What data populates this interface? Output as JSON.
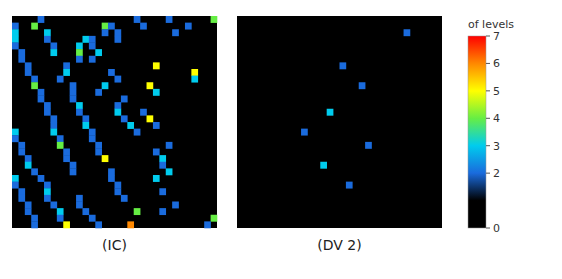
{
  "chart_data": {
    "type": "heatmap",
    "grid_size": 32,
    "panels": [
      {
        "label": "(IC)",
        "cells": [
          [
            0,
            4,
            2
          ],
          [
            0,
            19,
            2
          ],
          [
            0,
            24,
            2
          ],
          [
            0,
            31,
            4
          ],
          [
            1,
            0,
            2
          ],
          [
            1,
            3,
            4
          ],
          [
            1,
            14,
            4
          ],
          [
            1,
            15,
            2
          ],
          [
            1,
            20,
            2
          ],
          [
            1,
            27,
            2
          ],
          [
            2,
            0,
            3
          ],
          [
            2,
            5,
            3
          ],
          [
            2,
            14,
            2
          ],
          [
            2,
            16,
            2
          ],
          [
            2,
            25,
            2
          ],
          [
            3,
            0,
            3
          ],
          [
            3,
            5,
            2
          ],
          [
            3,
            11,
            3
          ],
          [
            3,
            12,
            2
          ],
          [
            3,
            16,
            2
          ],
          [
            4,
            0,
            2
          ],
          [
            4,
            6,
            2
          ],
          [
            4,
            10,
            3
          ],
          [
            4,
            12,
            2
          ],
          [
            5,
            1,
            2
          ],
          [
            5,
            6,
            3
          ],
          [
            5,
            10,
            4
          ],
          [
            5,
            13,
            3
          ],
          [
            6,
            1,
            2
          ],
          [
            6,
            10,
            2
          ],
          [
            6,
            12,
            2
          ],
          [
            7,
            2,
            2
          ],
          [
            7,
            8,
            2
          ],
          [
            7,
            22,
            5
          ],
          [
            8,
            2,
            2
          ],
          [
            8,
            8,
            3
          ],
          [
            8,
            15,
            2
          ],
          [
            8,
            28,
            5
          ],
          [
            9,
            3,
            2
          ],
          [
            9,
            7,
            2
          ],
          [
            9,
            16,
            2
          ],
          [
            9,
            28,
            3
          ],
          [
            10,
            3,
            4
          ],
          [
            10,
            9,
            2
          ],
          [
            10,
            14,
            3
          ],
          [
            10,
            21,
            5
          ],
          [
            11,
            4,
            2
          ],
          [
            11,
            9,
            2
          ],
          [
            11,
            13,
            2
          ],
          [
            11,
            22,
            3
          ],
          [
            12,
            4,
            2
          ],
          [
            12,
            9,
            2
          ],
          [
            12,
            17,
            2
          ],
          [
            13,
            5,
            2
          ],
          [
            13,
            10,
            3
          ],
          [
            13,
            16,
            2
          ],
          [
            14,
            5,
            2
          ],
          [
            14,
            10,
            2
          ],
          [
            14,
            16,
            3
          ],
          [
            14,
            20,
            2
          ],
          [
            15,
            6,
            2
          ],
          [
            15,
            11,
            2
          ],
          [
            15,
            17,
            2
          ],
          [
            15,
            21,
            5
          ],
          [
            16,
            6,
            2
          ],
          [
            16,
            11,
            3
          ],
          [
            16,
            18,
            3
          ],
          [
            16,
            22,
            2
          ],
          [
            17,
            0,
            3
          ],
          [
            17,
            6,
            3
          ],
          [
            17,
            12,
            2
          ],
          [
            17,
            19,
            2
          ],
          [
            18,
            0,
            2
          ],
          [
            18,
            7,
            2
          ],
          [
            18,
            12,
            2
          ],
          [
            19,
            1,
            2
          ],
          [
            19,
            7,
            4
          ],
          [
            19,
            13,
            2
          ],
          [
            19,
            24,
            2
          ],
          [
            20,
            1,
            2
          ],
          [
            20,
            8,
            2
          ],
          [
            20,
            13,
            2
          ],
          [
            20,
            22,
            2
          ],
          [
            21,
            2,
            2
          ],
          [
            21,
            8,
            2
          ],
          [
            21,
            14,
            5
          ],
          [
            21,
            23,
            3
          ],
          [
            22,
            2,
            3
          ],
          [
            22,
            9,
            2
          ],
          [
            22,
            23,
            2
          ],
          [
            23,
            3,
            2
          ],
          [
            23,
            9,
            2
          ],
          [
            23,
            15,
            2
          ],
          [
            23,
            24,
            3
          ],
          [
            24,
            0,
            3
          ],
          [
            24,
            4,
            2
          ],
          [
            24,
            15,
            2
          ],
          [
            24,
            22,
            3
          ],
          [
            25,
            0,
            2
          ],
          [
            25,
            5,
            2
          ],
          [
            25,
            16,
            2
          ],
          [
            26,
            1,
            2
          ],
          [
            26,
            5,
            3
          ],
          [
            26,
            16,
            2
          ],
          [
            26,
            23,
            2
          ],
          [
            27,
            1,
            2
          ],
          [
            27,
            5,
            2
          ],
          [
            27,
            10,
            2
          ],
          [
            27,
            17,
            2
          ],
          [
            28,
            2,
            2
          ],
          [
            28,
            6,
            2
          ],
          [
            28,
            10,
            2
          ],
          [
            28,
            25,
            2
          ],
          [
            29,
            2,
            2
          ],
          [
            29,
            7,
            3
          ],
          [
            29,
            11,
            2
          ],
          [
            29,
            23,
            2
          ],
          [
            29,
            19,
            4
          ],
          [
            30,
            3,
            2
          ],
          [
            30,
            7,
            2
          ],
          [
            30,
            12,
            2
          ],
          [
            30,
            31,
            4
          ],
          [
            31,
            3,
            2
          ],
          [
            31,
            8,
            5
          ],
          [
            31,
            13,
            2
          ],
          [
            31,
            18,
            6
          ],
          [
            31,
            30,
            2
          ]
        ]
      },
      {
        "label": "(DV 2)",
        "cells": [
          [
            2,
            26,
            2
          ],
          [
            7,
            16,
            2
          ],
          [
            10,
            19,
            2
          ],
          [
            14,
            14,
            3
          ],
          [
            17,
            10,
            2
          ],
          [
            19,
            20,
            2
          ],
          [
            22,
            13,
            3
          ],
          [
            25,
            17,
            2
          ]
        ]
      }
    ],
    "colorbar_label": "of levels",
    "colorbar_range": [
      0,
      7
    ],
    "colorbar_ticks": [
      0,
      2,
      3,
      4,
      5,
      6,
      7
    ],
    "color_stops": [
      [
        0.0,
        "#000000"
      ],
      [
        0.143,
        "#000000"
      ],
      [
        0.286,
        "#1a6bdd"
      ],
      [
        0.429,
        "#00ccee"
      ],
      [
        0.571,
        "#66ee44"
      ],
      [
        0.714,
        "#ffff00"
      ],
      [
        0.857,
        "#ff8800"
      ],
      [
        1.0,
        "#ff0000"
      ]
    ]
  }
}
